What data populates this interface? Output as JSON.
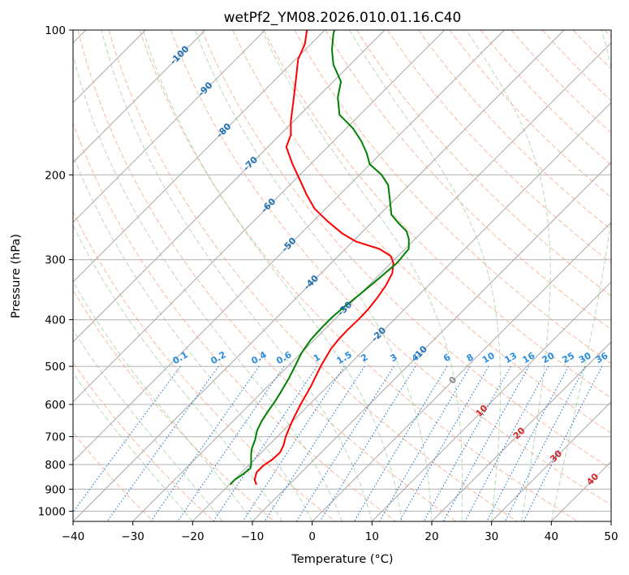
{
  "chart_data": {
    "type": "line",
    "diagram": "skew-t log-p",
    "title": "wetPf2_YM08.2026.010.01.16.C40",
    "xlabel": "Temperature (°C)",
    "ylabel": "Pressure (hPa)",
    "xlim": [
      -40,
      50
    ],
    "ylim": [
      1050,
      100
    ],
    "x_ticks": [
      "−40",
      "−30",
      "−20",
      "−10",
      "0",
      "10",
      "20",
      "30",
      "40",
      "50"
    ],
    "x_tick_values": [
      -40,
      -30,
      -20,
      -10,
      0,
      10,
      20,
      30,
      40,
      50
    ],
    "y_ticks": [
      "1000",
      "900",
      "800",
      "700",
      "600",
      "500",
      "400",
      "300",
      "200",
      "100"
    ],
    "y_tick_values": [
      1000,
      900,
      800,
      700,
      600,
      500,
      400,
      300,
      200,
      100
    ],
    "isotherm_labels": [
      {
        "text": "-100",
        "t": -100,
        "p": 113
      },
      {
        "text": "-90",
        "t": -90,
        "p": 133
      },
      {
        "text": "-80",
        "t": -80,
        "p": 162
      },
      {
        "text": "-70",
        "t": -70,
        "p": 190
      },
      {
        "text": "-60",
        "t": -60,
        "p": 232
      },
      {
        "text": "-50",
        "t": -50,
        "p": 280
      },
      {
        "text": "-40",
        "t": -40,
        "p": 335
      },
      {
        "text": "-30",
        "t": -30,
        "p": 380
      },
      {
        "text": "-20",
        "t": -20,
        "p": 430
      },
      {
        "text": "-10",
        "t": -10,
        "p": 470
      },
      {
        "text": "0",
        "t": 0,
        "p": 535
      }
    ],
    "mixing_ratio_labels": [
      "0.1",
      "0.2",
      "0.4",
      "0.6",
      "1",
      "1.5",
      "2",
      "3",
      "4",
      "6",
      "8",
      "10",
      "13",
      "16",
      "20",
      "25",
      "30",
      "36"
    ],
    "mixing_ratio_values": [
      0.1,
      0.2,
      0.4,
      0.6,
      1,
      1.5,
      2,
      3,
      4,
      6,
      8,
      10,
      13,
      16,
      20,
      25,
      30,
      36
    ],
    "dry_adiabat_labels": [
      {
        "text": "10",
        "t": 10,
        "p": 620
      },
      {
        "text": "20",
        "t": 20,
        "p": 690
      },
      {
        "text": "30",
        "t": 30,
        "p": 770
      },
      {
        "text": "40",
        "t": 40,
        "p": 860
      }
    ],
    "series": [
      {
        "name": "Temperature",
        "color": "#ff0000",
        "points": [
          [
            880,
            -15.5
          ],
          [
            860,
            -16.6
          ],
          [
            830,
            -17.5
          ],
          [
            805,
            -17.5
          ],
          [
            780,
            -17.0
          ],
          [
            755,
            -16.9
          ],
          [
            730,
            -17.5
          ],
          [
            700,
            -18.6
          ],
          [
            650,
            -20.1
          ],
          [
            600,
            -21.5
          ],
          [
            550,
            -22.8
          ],
          [
            500,
            -24.5
          ],
          [
            460,
            -25.7
          ],
          [
            440,
            -26.0
          ],
          [
            420,
            -26.1
          ],
          [
            400,
            -26.0
          ],
          [
            380,
            -26.1
          ],
          [
            360,
            -26.5
          ],
          [
            340,
            -27.1
          ],
          [
            320,
            -28.1
          ],
          [
            305,
            -29.6
          ],
          [
            295,
            -31.2
          ],
          [
            285,
            -34.3
          ],
          [
            275,
            -39.5
          ],
          [
            265,
            -43.0
          ],
          [
            250,
            -47.5
          ],
          [
            235,
            -51.9
          ],
          [
            220,
            -55.5
          ],
          [
            205,
            -59.1
          ],
          [
            190,
            -63.0
          ],
          [
            175,
            -66.9
          ],
          [
            165,
            -68.2
          ],
          [
            155,
            -70.4
          ],
          [
            140,
            -73.5
          ],
          [
            125,
            -77.0
          ],
          [
            115,
            -79.6
          ],
          [
            107,
            -81.0
          ],
          [
            100,
            -83.0
          ]
        ]
      },
      {
        "name": "Dewpoint",
        "color": "#008000",
        "points": [
          [
            880,
            -19.9
          ],
          [
            860,
            -19.9
          ],
          [
            840,
            -19.5
          ],
          [
            815,
            -19.2
          ],
          [
            800,
            -19.7
          ],
          [
            780,
            -20.6
          ],
          [
            760,
            -21.5
          ],
          [
            740,
            -22.3
          ],
          [
            710,
            -23.2
          ],
          [
            680,
            -24.4
          ],
          [
            665,
            -24.8
          ],
          [
            650,
            -25.2
          ],
          [
            620,
            -25.8
          ],
          [
            590,
            -26.3
          ],
          [
            560,
            -27.0
          ],
          [
            530,
            -27.8
          ],
          [
            500,
            -28.8
          ],
          [
            470,
            -29.9
          ],
          [
            440,
            -30.6
          ],
          [
            415,
            -30.8
          ],
          [
            395,
            -30.8
          ],
          [
            375,
            -30.5
          ],
          [
            355,
            -30.0
          ],
          [
            330,
            -29.5
          ],
          [
            305,
            -29.0
          ],
          [
            285,
            -29.4
          ],
          [
            272,
            -31.0
          ],
          [
            262,
            -32.7
          ],
          [
            252,
            -35.4
          ],
          [
            242,
            -38.0
          ],
          [
            228,
            -40.3
          ],
          [
            210,
            -43.5
          ],
          [
            200,
            -46.3
          ],
          [
            190,
            -50.1
          ],
          [
            180,
            -52.5
          ],
          [
            170,
            -55.4
          ],
          [
            160,
            -58.9
          ],
          [
            150,
            -63.4
          ],
          [
            138,
            -66.6
          ],
          [
            128,
            -68.7
          ],
          [
            118,
            -72.8
          ],
          [
            110,
            -75.5
          ],
          [
            102,
            -77.9
          ],
          [
            100,
            -78.4
          ]
        ]
      }
    ]
  }
}
